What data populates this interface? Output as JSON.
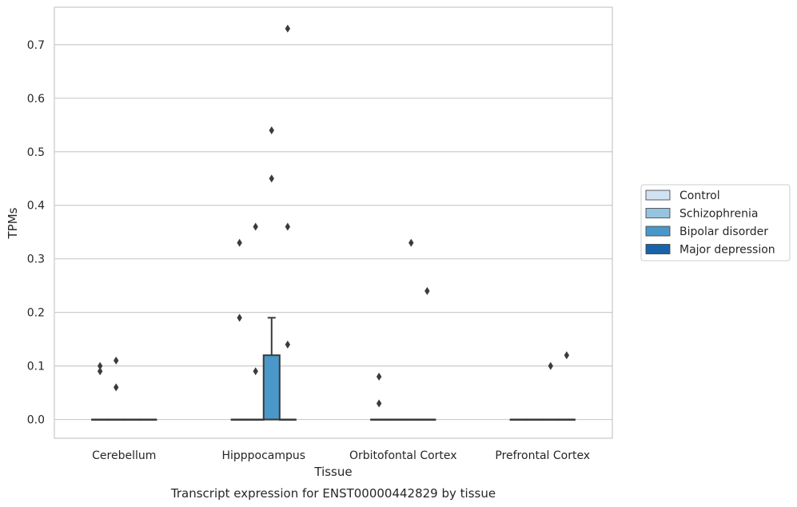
{
  "chart_data": {
    "type": "box",
    "caption": "Transcript expression for ENST00000442829 by tissue",
    "xlabel": "Tissue",
    "ylabel": "TPMs",
    "ylim": [
      -0.035,
      0.77
    ],
    "yticks": [
      0.0,
      0.1,
      0.2,
      0.3,
      0.4,
      0.5,
      0.6,
      0.7
    ],
    "ytick_labels": [
      "0.0",
      "0.1",
      "0.2",
      "0.3",
      "0.4",
      "0.5",
      "0.6",
      "0.7"
    ],
    "grid": "horizontal",
    "legend_position": "right",
    "categories": [
      "Cerebellum",
      "Hipppocampus",
      "Orbitofontal Cortex",
      "Prefrontal Cortex"
    ],
    "series": [
      {
        "name": "Control",
        "color": "#d0e1f2",
        "boxes": [
          {
            "category": "Cerebellum",
            "q1": 0.0,
            "median": 0.0,
            "q3": 0.0,
            "whisker_low": 0.0,
            "whisker_high": 0.0,
            "outliers": [
              0.1,
              0.09
            ]
          },
          {
            "category": "Hipppocampus",
            "q1": 0.0,
            "median": 0.0,
            "q3": 0.0,
            "whisker_low": 0.0,
            "whisker_high": 0.0,
            "outliers": [
              0.33,
              0.19
            ]
          },
          {
            "category": "Orbitofontal Cortex",
            "q1": 0.0,
            "median": 0.0,
            "q3": 0.0,
            "whisker_low": 0.0,
            "whisker_high": 0.0,
            "outliers": [
              0.08,
              0.03
            ]
          },
          {
            "category": "Prefrontal Cortex",
            "q1": 0.0,
            "median": 0.0,
            "q3": 0.0,
            "whisker_low": 0.0,
            "whisker_high": 0.0,
            "outliers": []
          }
        ]
      },
      {
        "name": "Schizophrenia",
        "color": "#94c4df",
        "boxes": [
          {
            "category": "Cerebellum",
            "q1": 0.0,
            "median": 0.0,
            "q3": 0.0,
            "whisker_low": 0.0,
            "whisker_high": 0.0,
            "outliers": [
              0.11,
              0.06
            ]
          },
          {
            "category": "Hipppocampus",
            "q1": 0.0,
            "median": 0.0,
            "q3": 0.0,
            "whisker_low": 0.0,
            "whisker_high": 0.0,
            "outliers": [
              0.36,
              0.09
            ]
          },
          {
            "category": "Orbitofontal Cortex",
            "q1": 0.0,
            "median": 0.0,
            "q3": 0.0,
            "whisker_low": 0.0,
            "whisker_high": 0.0,
            "outliers": []
          },
          {
            "category": "Prefrontal Cortex",
            "q1": 0.0,
            "median": 0.0,
            "q3": 0.0,
            "whisker_low": 0.0,
            "whisker_high": 0.0,
            "outliers": []
          }
        ]
      },
      {
        "name": "Bipolar disorder",
        "color": "#4a98c9",
        "boxes": [
          {
            "category": "Cerebellum",
            "q1": 0.0,
            "median": 0.0,
            "q3": 0.0,
            "whisker_low": 0.0,
            "whisker_high": 0.0,
            "outliers": []
          },
          {
            "category": "Hipppocampus",
            "q1": 0.0,
            "median": 0.0,
            "q3": 0.12,
            "whisker_low": 0.0,
            "whisker_high": 0.19,
            "outliers": [
              0.54,
              0.45
            ]
          },
          {
            "category": "Orbitofontal Cortex",
            "q1": 0.0,
            "median": 0.0,
            "q3": 0.0,
            "whisker_low": 0.0,
            "whisker_high": 0.0,
            "outliers": [
              0.33
            ]
          },
          {
            "category": "Prefrontal Cortex",
            "q1": 0.0,
            "median": 0.0,
            "q3": 0.0,
            "whisker_low": 0.0,
            "whisker_high": 0.0,
            "outliers": [
              0.1
            ]
          }
        ]
      },
      {
        "name": "Major depression",
        "color": "#1764ab",
        "boxes": [
          {
            "category": "Cerebellum",
            "q1": 0.0,
            "median": 0.0,
            "q3": 0.0,
            "whisker_low": 0.0,
            "whisker_high": 0.0,
            "outliers": []
          },
          {
            "category": "Hipppocampus",
            "q1": 0.0,
            "median": 0.0,
            "q3": 0.0,
            "whisker_low": 0.0,
            "whisker_high": 0.0,
            "outliers": [
              0.73,
              0.36,
              0.14
            ]
          },
          {
            "category": "Orbitofontal Cortex",
            "q1": 0.0,
            "median": 0.0,
            "q3": 0.0,
            "whisker_low": 0.0,
            "whisker_high": 0.0,
            "outliers": [
              0.24
            ]
          },
          {
            "category": "Prefrontal Cortex",
            "q1": 0.0,
            "median": 0.0,
            "q3": 0.0,
            "whisker_low": 0.0,
            "whisker_high": 0.0,
            "outliers": [
              0.12
            ]
          }
        ]
      }
    ]
  }
}
